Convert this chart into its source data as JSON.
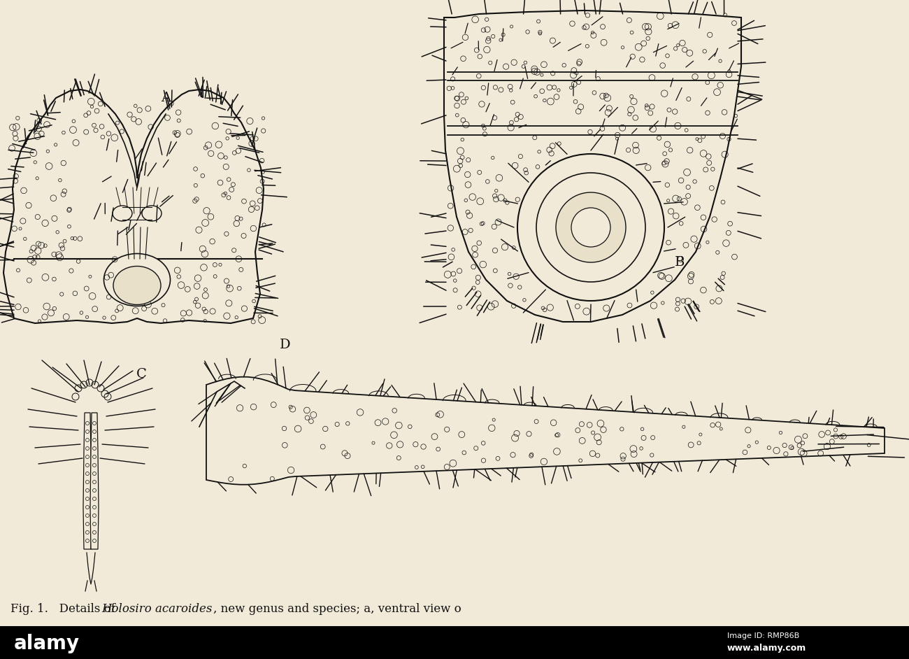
{
  "background_color": "#f2ead8",
  "fig_width": 13.0,
  "fig_height": 9.42,
  "caption_text": "Fig. 1.   Details of ",
  "caption_italic": "Holosiro acaroides",
  "caption_rest": ", new genus and species; a, ventral view o",
  "caption_fontsize": 12.0,
  "panel_label_fontsize": 14,
  "line_color": "#111111",
  "body_color": "#f2ead8",
  "body_fill": "#e8e0c8",
  "alamy_text": "alamy",
  "alamy_id_text": "Image ID: RMP86B",
  "alamy_url_text": "www.alamy.com"
}
